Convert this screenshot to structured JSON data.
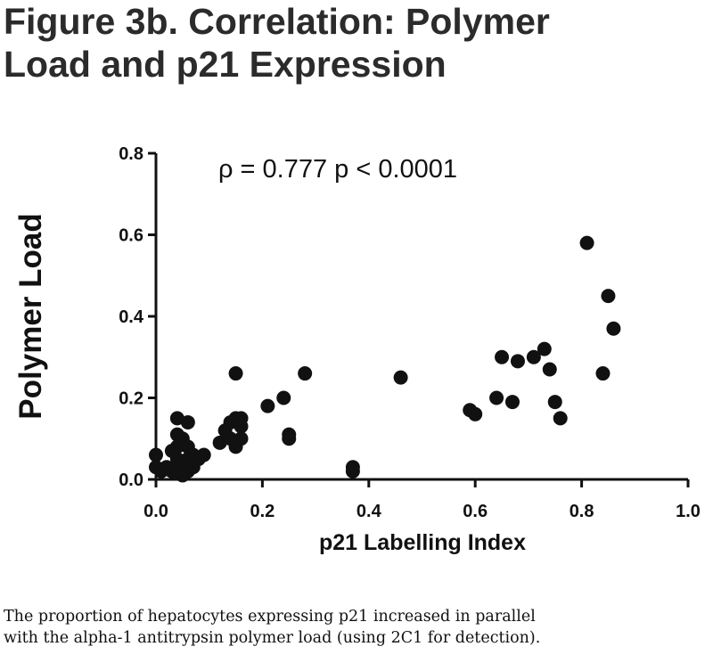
{
  "title_lines": [
    "Figure 3b. Correlation: Polymer",
    "Load and p21 Expression"
  ],
  "caption_lines": [
    "The proportion of hepatocytes expressing p21 increased in parallel",
    "with the alpha-1 antitrypsin polymer load (using 2C1 for detection)."
  ],
  "chart_data": {
    "type": "scatter",
    "title": "Figure 3b. Correlation: Polymer Load and p21 Expression",
    "xlabel": "p21 Labelling Index",
    "ylabel": "Polymer Load",
    "xlim": [
      0.0,
      1.0
    ],
    "ylim": [
      0.0,
      0.8
    ],
    "xticks": [
      "0.0",
      "0.2",
      "0.4",
      "0.6",
      "0.8",
      "1.0"
    ],
    "yticks": [
      "0.0",
      "0.2",
      "0.4",
      "0.6",
      "0.8"
    ],
    "grid": false,
    "annotation": "ρ = 0.777 p < 0.0001",
    "points": [
      [
        0.0,
        0.06
      ],
      [
        0.0,
        0.03
      ],
      [
        0.01,
        0.02
      ],
      [
        0.02,
        0.03
      ],
      [
        0.03,
        0.07
      ],
      [
        0.03,
        0.02
      ],
      [
        0.04,
        0.15
      ],
      [
        0.04,
        0.11
      ],
      [
        0.04,
        0.08
      ],
      [
        0.04,
        0.05
      ],
      [
        0.04,
        0.02
      ],
      [
        0.05,
        0.1
      ],
      [
        0.05,
        0.03
      ],
      [
        0.05,
        0.01
      ],
      [
        0.06,
        0.14
      ],
      [
        0.06,
        0.08
      ],
      [
        0.06,
        0.05
      ],
      [
        0.06,
        0.02
      ],
      [
        0.07,
        0.06
      ],
      [
        0.07,
        0.03
      ],
      [
        0.08,
        0.05
      ],
      [
        0.09,
        0.06
      ],
      [
        0.12,
        0.09
      ],
      [
        0.13,
        0.12
      ],
      [
        0.14,
        0.14
      ],
      [
        0.14,
        0.1
      ],
      [
        0.15,
        0.26
      ],
      [
        0.15,
        0.15
      ],
      [
        0.15,
        0.08
      ],
      [
        0.16,
        0.15
      ],
      [
        0.16,
        0.13
      ],
      [
        0.16,
        0.1
      ],
      [
        0.21,
        0.18
      ],
      [
        0.24,
        0.2
      ],
      [
        0.25,
        0.11
      ],
      [
        0.25,
        0.1
      ],
      [
        0.28,
        0.26
      ],
      [
        0.37,
        0.03
      ],
      [
        0.37,
        0.02
      ],
      [
        0.46,
        0.25
      ],
      [
        0.59,
        0.17
      ],
      [
        0.6,
        0.16
      ],
      [
        0.64,
        0.2
      ],
      [
        0.65,
        0.3
      ],
      [
        0.67,
        0.19
      ],
      [
        0.68,
        0.29
      ],
      [
        0.71,
        0.3
      ],
      [
        0.73,
        0.32
      ],
      [
        0.74,
        0.27
      ],
      [
        0.75,
        0.19
      ],
      [
        0.76,
        0.15
      ],
      [
        0.81,
        0.58
      ],
      [
        0.84,
        0.26
      ],
      [
        0.85,
        0.45
      ],
      [
        0.86,
        0.37
      ]
    ]
  }
}
